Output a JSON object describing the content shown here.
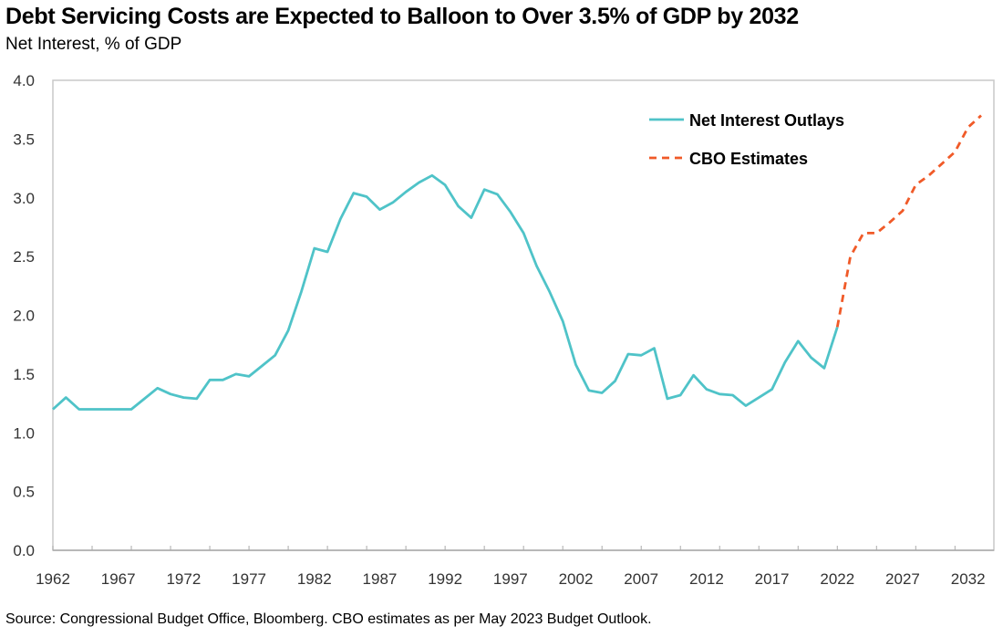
{
  "chart_data": {
    "type": "line",
    "title": "Debt Servicing Costs are Expected to Balloon to Over 3.5% of GDP by 2032",
    "subtitle": "Net Interest, % of GDP",
    "xlabel": "",
    "ylabel": "",
    "ylim": [
      0,
      4.0
    ],
    "xlim": [
      1962,
      2033
    ],
    "yticks": [
      "0.0",
      "0.5",
      "1.0",
      "1.5",
      "2.0",
      "2.5",
      "3.0",
      "3.5",
      "4.0"
    ],
    "xticks": [
      "1962",
      "1967",
      "1972",
      "1977",
      "1982",
      "1987",
      "1992",
      "1997",
      "2002",
      "2007",
      "2012",
      "2017",
      "2022",
      "2027",
      "2032"
    ],
    "grid": false,
    "legend_position": "top-right",
    "series": [
      {
        "name": "Net Interest Outlays",
        "color": "#4fc3c8",
        "style": "solid",
        "x": [
          1962,
          1963,
          1964,
          1965,
          1966,
          1967,
          1968,
          1969,
          1970,
          1971,
          1972,
          1973,
          1974,
          1975,
          1976,
          1977,
          1978,
          1979,
          1980,
          1981,
          1982,
          1983,
          1984,
          1985,
          1986,
          1987,
          1988,
          1989,
          1990,
          1991,
          1992,
          1993,
          1994,
          1995,
          1996,
          1997,
          1998,
          1999,
          2000,
          2001,
          2002,
          2003,
          2004,
          2005,
          2006,
          2007,
          2008,
          2009,
          2010,
          2011,
          2012,
          2013,
          2014,
          2015,
          2016,
          2017,
          2018,
          2019,
          2020,
          2021,
          2022
        ],
        "values": [
          1.2,
          1.3,
          1.2,
          1.2,
          1.2,
          1.2,
          1.2,
          1.29,
          1.38,
          1.33,
          1.3,
          1.29,
          1.45,
          1.45,
          1.5,
          1.48,
          1.57,
          1.66,
          1.87,
          2.2,
          2.57,
          2.54,
          2.82,
          3.04,
          3.01,
          2.9,
          2.96,
          3.05,
          3.13,
          3.19,
          3.11,
          2.93,
          2.83,
          3.07,
          3.03,
          2.88,
          2.7,
          2.42,
          2.2,
          1.95,
          1.58,
          1.36,
          1.34,
          1.44,
          1.67,
          1.66,
          1.72,
          1.29,
          1.32,
          1.49,
          1.37,
          1.33,
          1.32,
          1.23,
          1.3,
          1.37,
          1.6,
          1.78,
          1.64,
          1.55,
          1.9
        ]
      },
      {
        "name": "CBO Estimates",
        "color": "#f05a28",
        "style": "dashed",
        "x": [
          2022,
          2023,
          2024,
          2025,
          2026,
          2027,
          2028,
          2029,
          2030,
          2031,
          2032,
          2033
        ],
        "values": [
          1.9,
          2.5,
          2.7,
          2.7,
          2.79,
          2.89,
          3.11,
          3.19,
          3.29,
          3.39,
          3.6,
          3.7
        ]
      }
    ],
    "source": "Source: Congressional Budget Office, Bloomberg. CBO estimates as per May 2023 Budget Outlook."
  }
}
